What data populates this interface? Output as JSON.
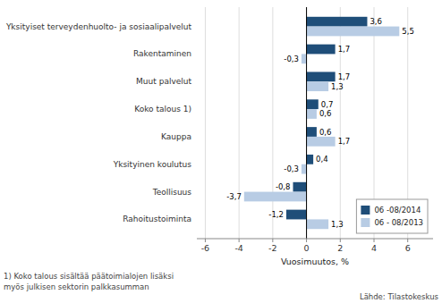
{
  "chart_data": {
    "type": "bar",
    "orientation": "horizontal",
    "categories": [
      "Rahoitustoiminta",
      "Teollisuus",
      "Yksityinen koulutus",
      "Kauppa",
      "Koko talous 1)",
      "Muut palvelut",
      "Rakentaminen",
      "Yksityiset terveydenhuolto- ja sosiaalipalvelut"
    ],
    "series": [
      {
        "name": "06 -08/2014",
        "color": "#1F4E79",
        "values": [
          -1.2,
          -0.8,
          0.4,
          0.6,
          0.7,
          1.7,
          1.7,
          3.6
        ],
        "value_labels": [
          "-1,2",
          "-0,8",
          "0,4",
          "0,6",
          "0,7",
          "1,7",
          "1,7",
          "3,6"
        ]
      },
      {
        "name": "06 - 08/2013",
        "color": "#B8CCE4",
        "values": [
          1.3,
          -3.7,
          -0.3,
          1.7,
          0.6,
          1.3,
          -0.3,
          5.5
        ],
        "value_labels": [
          "1,3",
          "-3,7",
          "-0,3",
          "1,7",
          "0,6",
          "1,3",
          "-0,3",
          "5,5"
        ]
      }
    ],
    "xlabel": "Vuosimuutos, %",
    "xlim": [
      -6.5,
      7.5
    ],
    "xticks": [
      -6,
      -4,
      -2,
      0,
      2,
      4,
      6
    ],
    "grid": true,
    "legend": "lower right",
    "data_labels": true,
    "annotations": [
      "1) Koko talous sisältää päätoimialojen lisäksi",
      "myös julkisen sektorin palkkasumman",
      "Lähde: Tilastokeskus"
    ]
  }
}
